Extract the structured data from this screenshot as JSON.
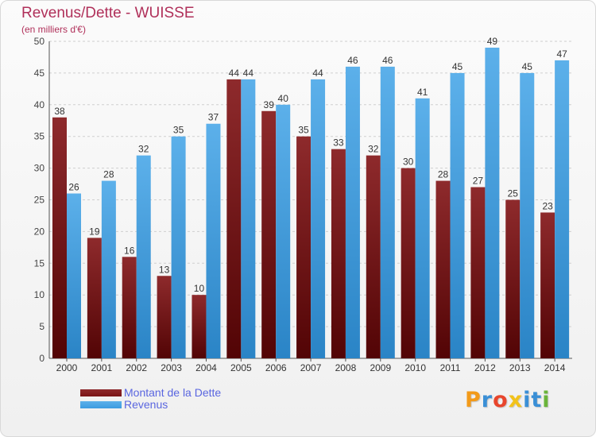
{
  "chart_data": {
    "type": "bar",
    "title": "Revenus/Dette - WUISSE",
    "subtitle": "(en milliers d'€)",
    "xlabel": "",
    "ylabel": "",
    "categories": [
      "2000",
      "2001",
      "2002",
      "2003",
      "2004",
      "2005",
      "2006",
      "2007",
      "2008",
      "2009",
      "2010",
      "2011",
      "2012",
      "2013",
      "2014"
    ],
    "series": [
      {
        "name": "Montant de la Dette",
        "color": "#7a1416",
        "values": [
          38,
          19,
          16,
          13,
          10,
          44,
          39,
          35,
          33,
          32,
          30,
          28,
          27,
          25,
          23
        ]
      },
      {
        "name": "Revenus",
        "color": "#3d9be0",
        "values": [
          26,
          28,
          32,
          35,
          37,
          44,
          40,
          44,
          46,
          46,
          41,
          45,
          49,
          45,
          47
        ]
      }
    ],
    "ylim": [
      0,
      50
    ],
    "yticks": [
      0,
      5,
      10,
      15,
      20,
      25,
      30,
      35,
      40,
      45,
      50
    ],
    "grid": true,
    "legend_position": "bottom-left"
  },
  "logo": {
    "text": "Proxiti",
    "colors": [
      "#f29a1a",
      "#3a8fd6",
      "#e8452c",
      "#f2c21a",
      "#3a8fd6",
      "#3a8fd6",
      "#6ab43a"
    ]
  }
}
